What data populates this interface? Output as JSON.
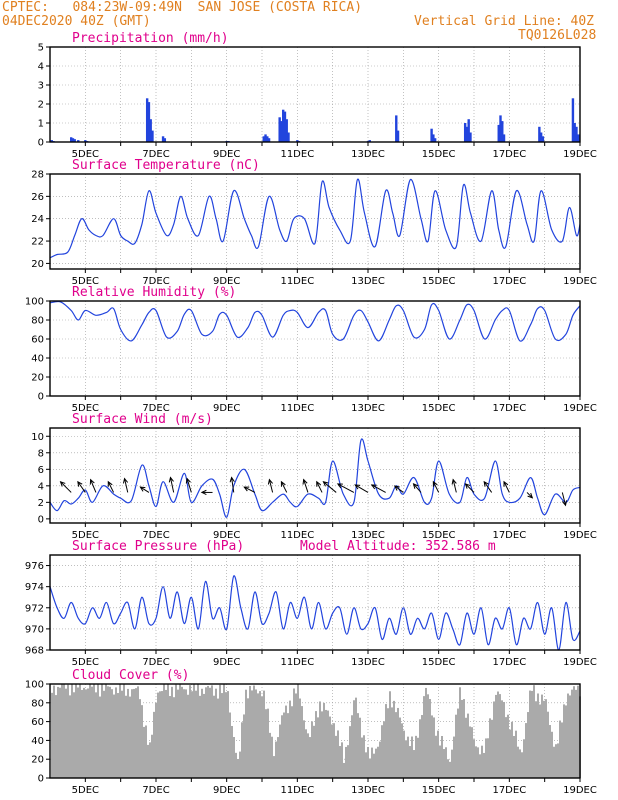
{
  "header": {
    "line1": "CPTEC:   084:23W-09:49N  SAN JOSE (COSTA RICA)",
    "line2": "04DEC2020 40Z (GMT)",
    "grid_note": "Vertical Grid Line: 40Z",
    "code": "TQ0126L028"
  },
  "colors": {
    "line": "#2244dd",
    "header": "#e08020",
    "title": "#e0008c",
    "grid": "#999999",
    "cloud": "#aaaaaa"
  },
  "chart_data": [
    {
      "type": "bar",
      "title": "Precipitation (mm/h)",
      "ylim": [
        0,
        5
      ],
      "yticks": [
        "0",
        "1",
        "2",
        "3",
        "4",
        "5"
      ],
      "xticks": [
        "5DEC",
        "7DEC",
        "9DEC",
        "11DEC",
        "13DEC",
        "15DEC",
        "17DEC",
        "19DEC"
      ],
      "x_day_range": [
        4.0,
        19.0
      ],
      "series": [
        {
          "x": [
            4.05,
            4.1,
            4.6,
            4.65,
            4.7,
            4.8,
            5.0,
            5.05,
            6.75,
            6.8,
            6.85,
            6.9,
            7.2,
            7.25,
            9.0,
            9.05,
            10.05,
            10.1,
            10.15,
            10.2,
            10.5,
            10.55,
            10.6,
            10.65,
            10.7,
            10.75,
            11.0,
            11.05,
            13.0,
            13.05,
            13.8,
            13.85,
            14.8,
            14.85,
            14.9,
            15.75,
            15.8,
            15.85,
            15.9,
            16.7,
            16.75,
            16.8,
            16.85,
            17.85,
            17.9,
            17.95,
            18.8,
            18.85,
            18.9,
            18.95
          ],
          "values": [
            0.1,
            0.05,
            0.25,
            0.2,
            0.15,
            0.1,
            0.1,
            0.05,
            2.3,
            2.1,
            1.2,
            0.6,
            0.3,
            0.2,
            0.05,
            0.05,
            0.3,
            0.4,
            0.3,
            0.2,
            1.3,
            1.1,
            1.7,
            1.6,
            1.2,
            0.5,
            0.1,
            0.05,
            0.05,
            0.1,
            1.4,
            0.6,
            0.7,
            0.4,
            0.2,
            1.0,
            0.8,
            1.2,
            0.5,
            0.9,
            1.4,
            1.1,
            0.4,
            0.8,
            0.5,
            0.3,
            2.3,
            1.0,
            0.8,
            0.4
          ]
        }
      ]
    },
    {
      "type": "line",
      "title": "Surface Temperature (nC)",
      "ylim": [
        19.5,
        28
      ],
      "yticks": [
        "20",
        "22",
        "24",
        "26",
        "28"
      ],
      "xticks": [
        "5DEC",
        "7DEC",
        "9DEC",
        "11DEC",
        "13DEC",
        "15DEC",
        "17DEC",
        "19DEC"
      ],
      "x_day_range": [
        4.0,
        19.0
      ],
      "series": [
        {
          "x": [
            4.0,
            4.2,
            4.5,
            4.7,
            4.9,
            5.1,
            5.3,
            5.5,
            5.8,
            6.0,
            6.2,
            6.4,
            6.6,
            6.8,
            7.0,
            7.3,
            7.5,
            7.7,
            7.9,
            8.2,
            8.5,
            8.7,
            8.9,
            9.2,
            9.5,
            9.7,
            9.9,
            10.2,
            10.5,
            10.7,
            10.9,
            11.2,
            11.5,
            11.7,
            11.9,
            12.2,
            12.5,
            12.7,
            12.9,
            13.2,
            13.5,
            13.7,
            13.9,
            14.2,
            14.5,
            14.7,
            14.9,
            15.2,
            15.5,
            15.7,
            15.9,
            16.2,
            16.5,
            16.7,
            16.9,
            17.2,
            17.5,
            17.7,
            17.9,
            18.2,
            18.5,
            18.7,
            18.9,
            19.0
          ],
          "values": [
            20.5,
            20.8,
            21.0,
            22.5,
            24.0,
            23.0,
            22.5,
            22.5,
            24.0,
            22.5,
            22.0,
            21.8,
            23.5,
            26.5,
            24.5,
            22.5,
            23.5,
            26.0,
            24.0,
            22.5,
            26.0,
            24.0,
            22.0,
            26.5,
            24.0,
            22.5,
            21.5,
            26.0,
            23.0,
            22.0,
            24.0,
            24.0,
            21.8,
            27.3,
            25.0,
            23.0,
            22.0,
            27.5,
            24.5,
            21.5,
            26.5,
            24.5,
            22.5,
            27.5,
            24.0,
            22.0,
            26.5,
            23.0,
            21.5,
            27.0,
            24.5,
            22.0,
            26.5,
            23.0,
            21.5,
            26.5,
            23.5,
            22.0,
            26.5,
            23.0,
            22.0,
            25.0,
            22.5,
            23.5
          ]
        }
      ]
    },
    {
      "type": "line",
      "title": "Relative Humidity (%)",
      "ylim": [
        0,
        100
      ],
      "yticks": [
        "0",
        "20",
        "40",
        "60",
        "80",
        "100"
      ],
      "xticks": [
        "5DEC",
        "7DEC",
        "9DEC",
        "11DEC",
        "13DEC",
        "15DEC",
        "17DEC",
        "19DEC"
      ],
      "x_day_range": [
        4.0,
        19.0
      ],
      "series": [
        {
          "x": [
            4.0,
            4.3,
            4.6,
            4.8,
            5.0,
            5.3,
            5.6,
            5.8,
            6.0,
            6.3,
            6.6,
            6.8,
            7.0,
            7.3,
            7.6,
            7.8,
            8.0,
            8.3,
            8.6,
            8.8,
            9.0,
            9.3,
            9.6,
            9.8,
            10.0,
            10.3,
            10.6,
            10.8,
            11.0,
            11.3,
            11.6,
            11.8,
            12.0,
            12.3,
            12.6,
            12.8,
            13.0,
            13.3,
            13.6,
            13.8,
            14.0,
            14.3,
            14.6,
            14.8,
            15.0,
            15.3,
            15.6,
            15.8,
            16.0,
            16.3,
            16.6,
            16.8,
            17.0,
            17.3,
            17.6,
            17.8,
            18.0,
            18.3,
            18.6,
            18.8,
            19.0
          ],
          "values": [
            98,
            99,
            90,
            80,
            90,
            85,
            88,
            92,
            70,
            58,
            75,
            88,
            90,
            62,
            68,
            86,
            90,
            65,
            68,
            86,
            85,
            62,
            72,
            88,
            85,
            62,
            85,
            90,
            88,
            72,
            88,
            90,
            65,
            60,
            85,
            90,
            78,
            58,
            80,
            95,
            90,
            62,
            70,
            96,
            90,
            60,
            80,
            96,
            90,
            60,
            80,
            90,
            90,
            58,
            75,
            92,
            90,
            60,
            65,
            85,
            95
          ]
        }
      ]
    },
    {
      "type": "line",
      "title": "Surface Wind (m/s)",
      "ylim": [
        -0.5,
        11
      ],
      "yticks": [
        "0",
        "2",
        "4",
        "6",
        "8",
        "10"
      ],
      "xticks": [
        "5DEC",
        "7DEC",
        "9DEC",
        "11DEC",
        "13DEC",
        "15DEC",
        "17DEC",
        "19DEC"
      ],
      "x_day_range": [
        4.0,
        19.0
      ],
      "series": [
        {
          "x": [
            4.0,
            4.2,
            4.4,
            4.6,
            4.8,
            5.0,
            5.2,
            5.5,
            5.8,
            6.0,
            6.3,
            6.6,
            6.8,
            7.0,
            7.2,
            7.5,
            7.8,
            8.0,
            8.3,
            8.6,
            8.8,
            9.0,
            9.2,
            9.5,
            9.8,
            10.0,
            10.3,
            10.6,
            10.8,
            11.0,
            11.3,
            11.6,
            11.8,
            12.0,
            12.3,
            12.6,
            12.8,
            13.0,
            13.3,
            13.6,
            13.8,
            14.0,
            14.3,
            14.6,
            14.8,
            15.0,
            15.3,
            15.6,
            15.8,
            16.0,
            16.3,
            16.6,
            16.8,
            17.0,
            17.3,
            17.6,
            17.8,
            18.0,
            18.3,
            18.6,
            18.8,
            19.0
          ],
          "values": [
            2.0,
            1.0,
            2.2,
            1.8,
            2.5,
            3.5,
            2.0,
            4.0,
            3.0,
            2.5,
            2.2,
            6.5,
            4.0,
            1.5,
            4.5,
            2.0,
            5.5,
            2.0,
            4.0,
            4.8,
            3.0,
            0.2,
            4.0,
            6.0,
            3.0,
            1.0,
            2.0,
            3.0,
            2.0,
            1.5,
            3.0,
            2.5,
            2.0,
            7.0,
            3.0,
            2.0,
            9.5,
            7.0,
            3.0,
            2.5,
            4.0,
            3.0,
            5.0,
            2.0,
            2.5,
            7.0,
            3.0,
            2.0,
            5.0,
            3.0,
            2.5,
            7.0,
            3.0,
            2.0,
            2.5,
            5.0,
            2.5,
            0.5,
            3.0,
            2.0,
            3.5,
            3.8
          ]
        }
      ],
      "arrows": [
        {
          "x": 4.6,
          "u": -1,
          "v": 1
        },
        {
          "x": 5.0,
          "u": -0.7,
          "v": 1
        },
        {
          "x": 5.3,
          "u": -0.5,
          "v": 1.2
        },
        {
          "x": 5.8,
          "u": -0.5,
          "v": 1
        },
        {
          "x": 6.2,
          "u": -0.3,
          "v": 1.3
        },
        {
          "x": 6.8,
          "u": -0.8,
          "v": 0.5
        },
        {
          "x": 7.5,
          "u": -0.3,
          "v": 1.4
        },
        {
          "x": 8.0,
          "u": -0.4,
          "v": 1.3
        },
        {
          "x": 8.6,
          "u": -1,
          "v": 0
        },
        {
          "x": 9.2,
          "u": -0.2,
          "v": 1.4
        },
        {
          "x": 9.8,
          "u": -1,
          "v": 0.5
        },
        {
          "x": 10.3,
          "u": -0.3,
          "v": 1.2
        },
        {
          "x": 10.7,
          "u": -0.5,
          "v": 1.0
        },
        {
          "x": 11.3,
          "u": -0.4,
          "v": 1.2
        },
        {
          "x": 11.7,
          "u": -0.5,
          "v": 1.0
        },
        {
          "x": 12.1,
          "u": -1.2,
          "v": 1.0
        },
        {
          "x": 12.6,
          "u": -1.5,
          "v": 0.8
        },
        {
          "x": 13.0,
          "u": -1.2,
          "v": 0.7
        },
        {
          "x": 13.5,
          "u": -1.3,
          "v": 0.7
        },
        {
          "x": 14.0,
          "u": -0.8,
          "v": 0.6
        },
        {
          "x": 14.5,
          "u": -0.7,
          "v": 0.8
        },
        {
          "x": 15.0,
          "u": -0.5,
          "v": 1.0
        },
        {
          "x": 15.5,
          "u": -0.3,
          "v": 1.2
        },
        {
          "x": 16.0,
          "u": -0.8,
          "v": 0.8
        },
        {
          "x": 16.5,
          "u": -0.7,
          "v": 1.0
        },
        {
          "x": 17.0,
          "u": -0.5,
          "v": 1.0
        },
        {
          "x": 17.5,
          "u": 0.5,
          "v": -0.5
        },
        {
          "x": 18.5,
          "u": 0.3,
          "v": -1.2
        }
      ]
    },
    {
      "type": "line",
      "title": "Surface Pressure (hPa)",
      "annotation": "Model Altitude: 352.586 m",
      "ylim": [
        968,
        977
      ],
      "yticks": [
        "968",
        "970",
        "972",
        "974",
        "976"
      ],
      "xticks": [
        "5DEC",
        "7DEC",
        "9DEC",
        "11DEC",
        "13DEC",
        "15DEC",
        "17DEC",
        "19DEC"
      ],
      "x_day_range": [
        4.0,
        19.0
      ],
      "series": [
        {
          "x": [
            4.0,
            4.2,
            4.4,
            4.6,
            4.8,
            5.0,
            5.2,
            5.4,
            5.6,
            5.8,
            6.0,
            6.2,
            6.4,
            6.6,
            6.8,
            7.0,
            7.2,
            7.4,
            7.6,
            7.8,
            8.0,
            8.2,
            8.4,
            8.6,
            8.8,
            9.0,
            9.2,
            9.4,
            9.6,
            9.8,
            10.0,
            10.2,
            10.4,
            10.6,
            10.8,
            11.0,
            11.2,
            11.4,
            11.6,
            11.8,
            12.0,
            12.2,
            12.4,
            12.6,
            12.8,
            13.0,
            13.2,
            13.4,
            13.6,
            13.8,
            14.0,
            14.2,
            14.4,
            14.6,
            14.8,
            15.0,
            15.2,
            15.4,
            15.6,
            15.8,
            16.0,
            16.2,
            16.4,
            16.6,
            16.8,
            17.0,
            17.2,
            17.4,
            17.6,
            17.8,
            18.0,
            18.2,
            18.4,
            18.6,
            18.8,
            19.0
          ],
          "values": [
            974,
            972,
            971,
            972.5,
            971,
            970.5,
            972,
            971,
            972.5,
            970.5,
            971.5,
            972.5,
            970,
            973,
            970.5,
            971,
            974,
            971,
            973.5,
            970.5,
            973,
            970,
            974.5,
            971,
            972,
            970,
            975,
            972,
            970,
            973.5,
            970.5,
            971.5,
            973.5,
            970,
            972.5,
            971,
            973,
            970,
            972.5,
            970,
            971.5,
            972,
            969.5,
            972,
            970,
            970.5,
            972,
            969,
            971,
            969.5,
            972,
            969.5,
            971,
            970,
            971.5,
            969,
            971.5,
            970,
            968.5,
            971.5,
            969.5,
            972,
            968.5,
            971,
            970,
            972,
            968.5,
            971,
            970,
            972.5,
            969.5,
            972,
            968,
            972.5,
            969,
            969.8
          ]
        }
      ]
    },
    {
      "type": "bar",
      "title": "Cloud Cover (%)",
      "ylim": [
        0,
        100
      ],
      "yticks": [
        "0",
        "20",
        "40",
        "60",
        "80",
        "100"
      ],
      "xticks": [
        "5DEC",
        "7DEC",
        "9DEC",
        "11DEC",
        "13DEC",
        "15DEC",
        "17DEC",
        "19DEC"
      ],
      "x_day_range": [
        4.0,
        19.0
      ],
      "profile": {
        "x": [
          4.0,
          4.5,
          5.0,
          5.5,
          6.0,
          6.5,
          6.8,
          7.0,
          7.5,
          8.0,
          8.5,
          9.0,
          9.3,
          9.5,
          10.0,
          10.3,
          10.6,
          11.0,
          11.3,
          11.6,
          12.0,
          12.3,
          12.6,
          13.0,
          13.3,
          13.6,
          14.0,
          14.3,
          14.6,
          15.0,
          15.3,
          15.6,
          16.0,
          16.3,
          16.6,
          17.0,
          17.3,
          17.6,
          18.0,
          18.3,
          18.6,
          19.0
        ],
        "values": [
          96,
          97,
          98,
          96,
          95,
          92,
          28,
          94,
          95,
          96,
          94,
          93,
          10,
          92,
          94,
          30,
          70,
          96,
          40,
          80,
          60,
          20,
          85,
          20,
          40,
          90,
          50,
          30,
          96,
          40,
          20,
          95,
          35,
          30,
          95,
          60,
          25,
          95,
          80,
          30,
          90,
          95
        ]
      }
    }
  ]
}
